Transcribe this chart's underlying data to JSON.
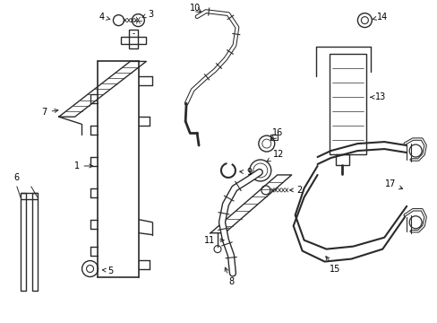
{
  "bg_color": "#ffffff",
  "line_color": "#2a2a2a",
  "figsize": [
    4.89,
    3.6
  ],
  "dpi": 100,
  "lw": 0.9,
  "fs": 7.0
}
